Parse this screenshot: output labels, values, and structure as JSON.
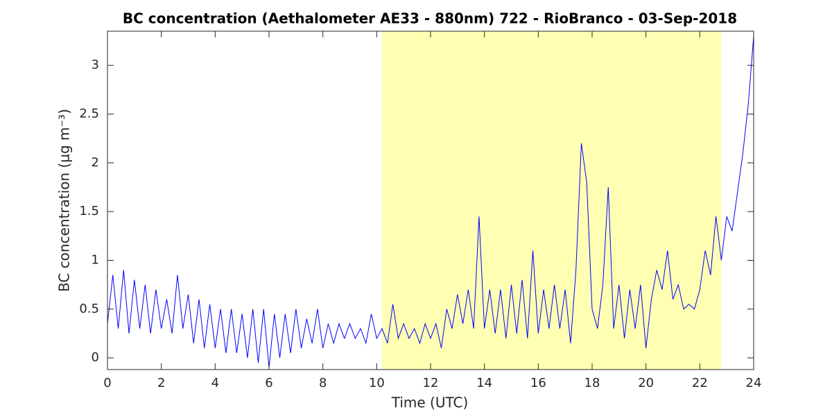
{
  "chart_data": {
    "type": "line",
    "title": "BC concentration (Aethalometer AE33 - 880nm) 722 - RioBranco - 03-Sep-2018",
    "xlabel": "Time (UTC)",
    "ylabel": "BC concentration (μg m⁻³)",
    "xlim": [
      0,
      24
    ],
    "ylim": [
      -0.12,
      3.35
    ],
    "xticks": [
      0,
      2,
      4,
      6,
      8,
      10,
      12,
      14,
      16,
      18,
      20,
      22,
      24
    ],
    "yticks": [
      0,
      0.5,
      1,
      1.5,
      2,
      2.5,
      3
    ],
    "shaded_span": [
      10.2,
      22.8
    ],
    "shaded_color": "#ffffb3",
    "series": [
      {
        "color": "#0000ff",
        "x": [
          0,
          0.2,
          0.4,
          0.6,
          0.8,
          1,
          1.2,
          1.4,
          1.6,
          1.8,
          2,
          2.2,
          2.4,
          2.6,
          2.8,
          3,
          3.2,
          3.4,
          3.6,
          3.8,
          4,
          4.2,
          4.4,
          4.6,
          4.8,
          5,
          5.2,
          5.4,
          5.6,
          5.8,
          6,
          6.2,
          6.4,
          6.6,
          6.8,
          7,
          7.2,
          7.4,
          7.6,
          7.8,
          8,
          8.2,
          8.4,
          8.6,
          8.8,
          9,
          9.2,
          9.4,
          9.6,
          9.8,
          10,
          10.2,
          10.4,
          10.6,
          10.8,
          11,
          11.2,
          11.4,
          11.6,
          11.8,
          12,
          12.2,
          12.4,
          12.6,
          12.8,
          13,
          13.2,
          13.4,
          13.6,
          13.8,
          14,
          14.2,
          14.4,
          14.6,
          14.8,
          15,
          15.2,
          15.4,
          15.6,
          15.8,
          16,
          16.2,
          16.4,
          16.6,
          16.8,
          17,
          17.2,
          17.4,
          17.6,
          17.8,
          18,
          18.2,
          18.4,
          18.6,
          18.8,
          19,
          19.2,
          19.4,
          19.6,
          19.8,
          20,
          20.2,
          20.4,
          20.6,
          20.8,
          21,
          21.2,
          21.4,
          21.6,
          21.8,
          22,
          22.2,
          22.4,
          22.6,
          22.8,
          23,
          23.2,
          23.4,
          23.6,
          23.8,
          24
        ],
        "values": [
          0.35,
          0.85,
          0.3,
          0.9,
          0.25,
          0.8,
          0.3,
          0.75,
          0.25,
          0.7,
          0.3,
          0.6,
          0.25,
          0.85,
          0.3,
          0.65,
          0.15,
          0.6,
          0.1,
          0.55,
          0.1,
          0.5,
          0.05,
          0.5,
          0.05,
          0.45,
          0,
          0.5,
          -0.05,
          0.5,
          -0.1,
          0.45,
          0,
          0.45,
          0.05,
          0.5,
          0.1,
          0.4,
          0.15,
          0.5,
          0.1,
          0.35,
          0.15,
          0.35,
          0.2,
          0.35,
          0.2,
          0.3,
          0.15,
          0.45,
          0.2,
          0.3,
          0.15,
          0.55,
          0.2,
          0.35,
          0.2,
          0.3,
          0.15,
          0.35,
          0.2,
          0.35,
          0.1,
          0.5,
          0.3,
          0.65,
          0.35,
          0.7,
          0.3,
          1.45,
          0.3,
          0.7,
          0.25,
          0.7,
          0.2,
          0.75,
          0.25,
          0.8,
          0.2,
          1.1,
          0.25,
          0.7,
          0.3,
          0.75,
          0.3,
          0.7,
          0.15,
          0.9,
          2.2,
          1.8,
          0.5,
          0.3,
          0.75,
          1.75,
          0.3,
          0.75,
          0.2,
          0.7,
          0.3,
          0.75,
          0.1,
          0.6,
          0.9,
          0.7,
          1.1,
          0.6,
          0.75,
          0.5,
          0.55,
          0.5,
          0.7,
          1.1,
          0.85,
          1.45,
          1.0,
          1.45,
          1.3,
          1.7,
          2.1,
          2.6,
          3.3
        ]
      }
    ]
  }
}
